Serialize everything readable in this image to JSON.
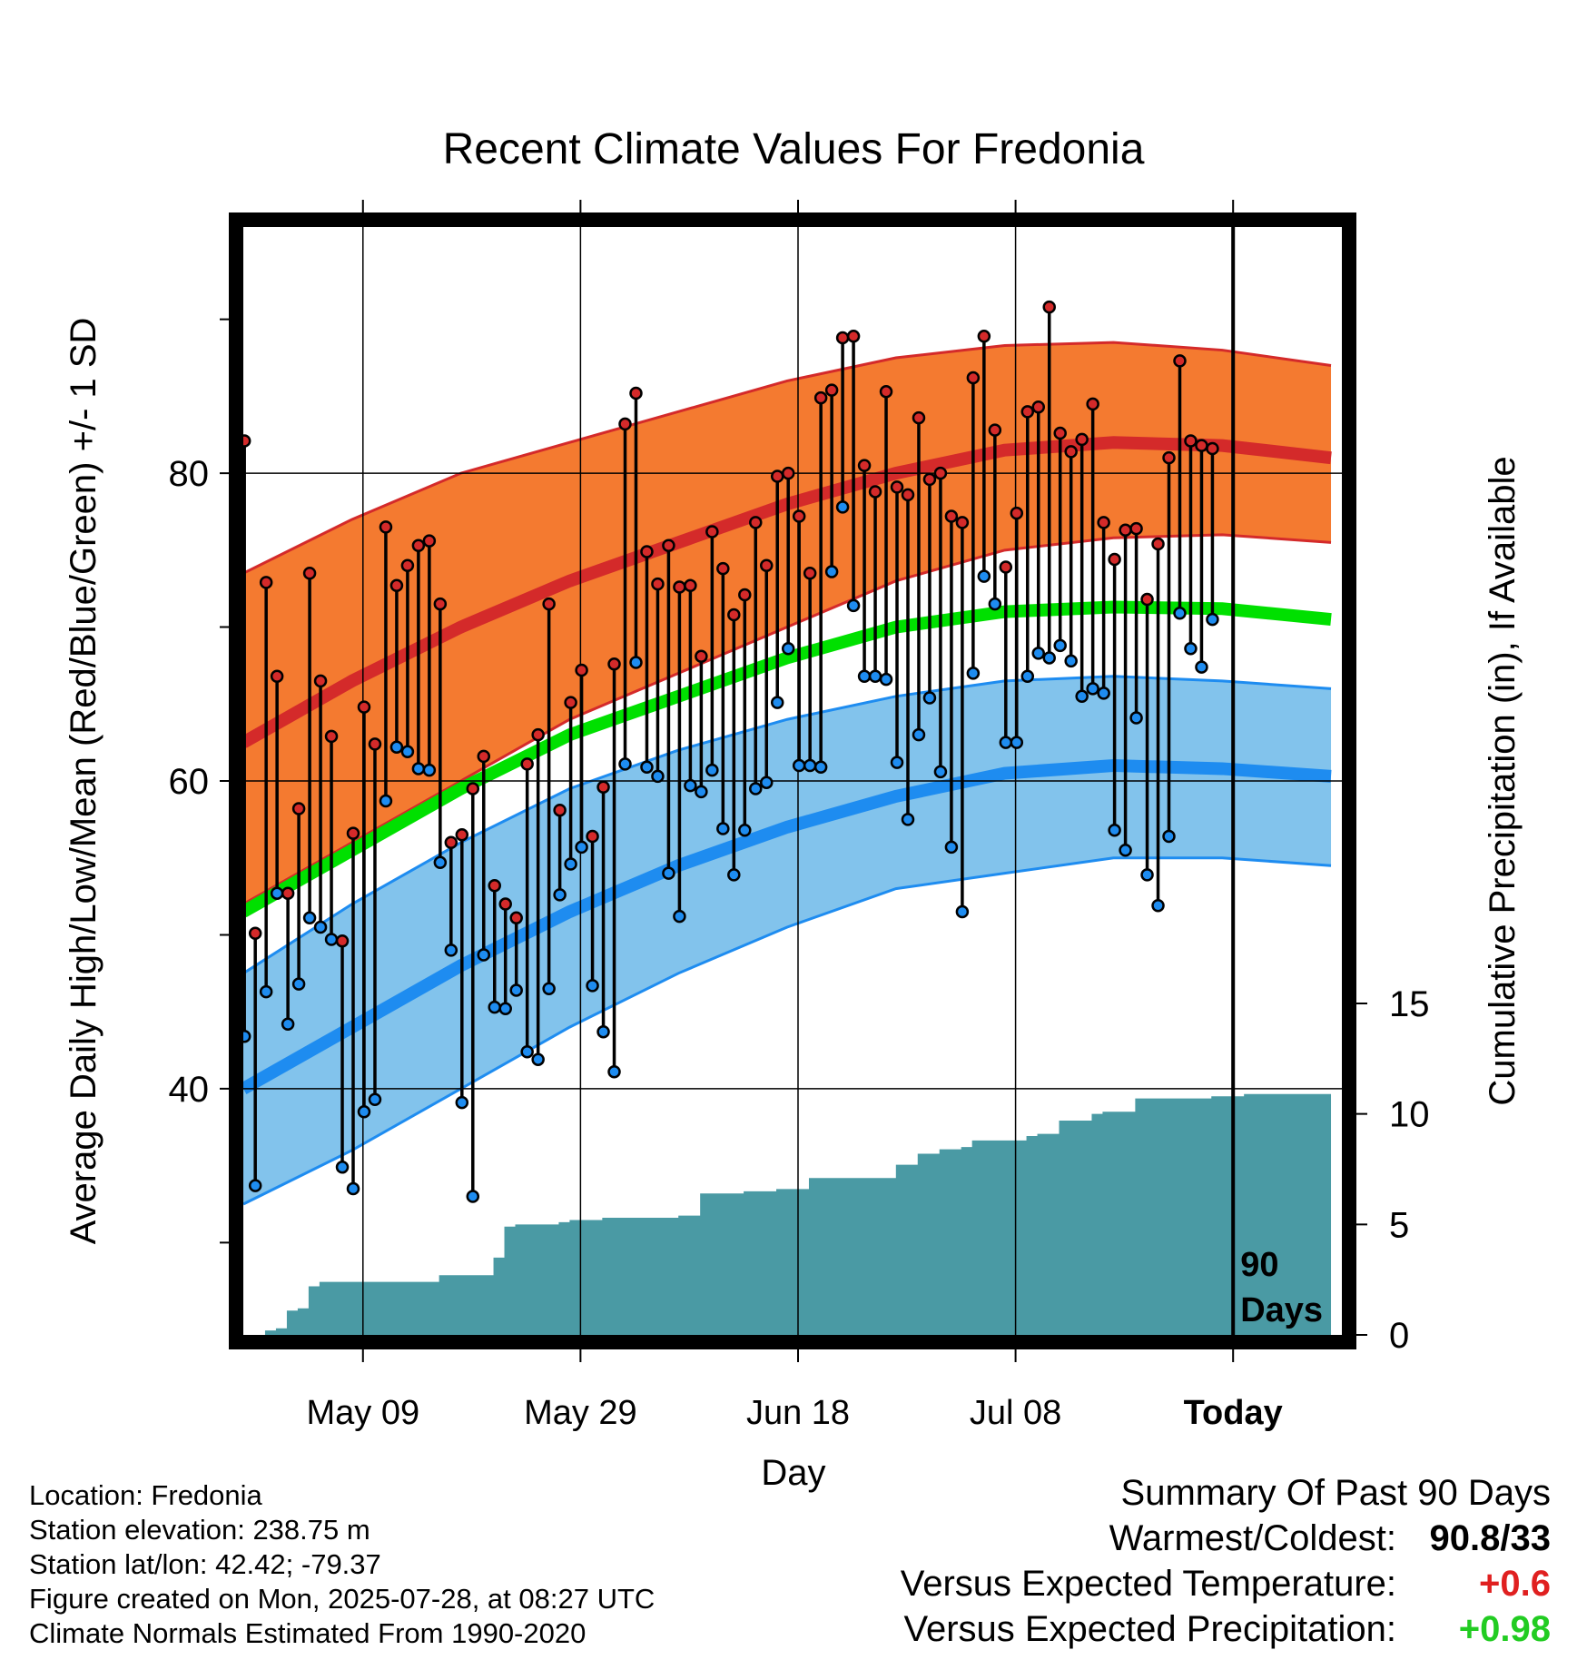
{
  "chart_data": {
    "type": "line",
    "title": "Recent Climate Values For Fredonia",
    "xlabel": "Day",
    "ylabel": "Average Daily High/Low/Mean (Red/Blue/Green) +/- 1 SD",
    "y2label": "Cumulative Precipitation (in), If Available",
    "x_tick_labels": [
      "May 09",
      "May 29",
      "Jun 18",
      "Jul 08",
      "Today"
    ],
    "x_tick_days": [
      11,
      31,
      51,
      71,
      91
    ],
    "y_ticks": [
      40,
      60,
      80
    ],
    "ylim": [
      24,
      96
    ],
    "y2_ticks": [
      0,
      5,
      10,
      15
    ],
    "y2lim": [
      0,
      15
    ],
    "xlim": [
      0,
      101
    ],
    "today_marker": "90\nDays",
    "normals": {
      "days": [
        0,
        10,
        20,
        30,
        40,
        50,
        60,
        70,
        80,
        90,
        100
      ],
      "high_mean": [
        62.5,
        66.5,
        70,
        73,
        75.5,
        78,
        80,
        81.5,
        82,
        81.8,
        81
      ],
      "high_upper": [
        73.5,
        77,
        80,
        82,
        84,
        86,
        87.5,
        88.3,
        88.5,
        88,
        87
      ],
      "high_lower": [
        52,
        56,
        60,
        64,
        67,
        70,
        73,
        75,
        75.8,
        76,
        75.5
      ],
      "mean": [
        51.5,
        55.5,
        59.5,
        63,
        65.5,
        68,
        70,
        71,
        71.3,
        71.2,
        70.5
      ],
      "low_mean": [
        40,
        44,
        48,
        51.5,
        54.5,
        57,
        59,
        60.5,
        61,
        60.8,
        60.3
      ],
      "low_upper": [
        47.5,
        52,
        56,
        59.5,
        62,
        64,
        65.5,
        66.5,
        66.8,
        66.5,
        66
      ],
      "low_lower": [
        32.5,
        36,
        40,
        44,
        47.5,
        50.5,
        53,
        54,
        55,
        55,
        54.5
      ]
    },
    "series": [
      {
        "name": "High",
        "values": [
          82.1,
          50.1,
          72.9,
          66.8,
          52.7,
          58.2,
          73.5,
          66.5,
          62.9,
          49.6,
          56.6,
          64.8,
          62.4,
          76.5,
          72.7,
          74.0,
          75.3,
          75.6,
          71.5,
          56.0,
          56.5,
          59.5,
          61.6,
          53.2,
          52.0,
          51.1,
          61.1,
          63.0,
          71.5,
          58.1,
          65.1,
          67.2,
          56.4,
          59.6,
          67.6,
          83.2,
          85.2,
          74.9,
          72.8,
          75.3,
          72.6,
          72.7,
          68.1,
          76.2,
          73.8,
          70.8,
          72.1,
          76.8,
          74.0,
          79.8,
          80.0,
          77.2,
          73.5,
          84.9,
          85.4,
          88.8,
          88.9,
          80.5,
          78.8,
          85.3,
          79.1,
          78.6,
          83.6,
          79.6,
          80.0,
          77.2,
          76.8,
          86.2,
          88.9,
          82.8,
          73.9,
          77.4,
          84.0,
          84.3,
          90.8,
          82.6,
          81.4,
          82.2,
          84.5,
          76.8,
          74.4,
          76.3,
          76.4,
          71.8,
          75.4,
          81.0,
          87.3,
          82.1,
          81.8,
          81.6
        ]
      },
      {
        "name": "Low",
        "values": [
          43.4,
          33.7,
          46.3,
          52.7,
          44.2,
          46.8,
          51.1,
          50.5,
          49.7,
          34.9,
          33.5,
          38.5,
          39.3,
          58.7,
          62.2,
          61.9,
          60.8,
          60.7,
          54.7,
          49.0,
          39.1,
          33.0,
          48.7,
          45.3,
          45.2,
          46.4,
          42.4,
          41.9,
          46.5,
          52.6,
          54.6,
          55.7,
          46.7,
          43.7,
          41.1,
          61.1,
          67.7,
          60.9,
          60.3,
          54.0,
          51.2,
          59.7,
          59.3,
          60.7,
          56.9,
          53.9,
          56.8,
          59.5,
          59.9,
          65.1,
          68.6,
          61.0,
          61.0,
          60.9,
          73.6,
          77.8,
          71.4,
          66.8,
          66.8,
          66.6,
          61.2,
          57.5,
          63.0,
          65.4,
          60.6,
          55.7,
          51.5,
          67.0,
          73.3,
          71.5,
          62.5,
          62.5,
          66.8,
          68.3,
          68.0,
          68.8,
          67.8,
          65.5,
          66.0,
          65.7,
          56.8,
          55.5,
          64.1,
          53.9,
          51.9,
          56.4,
          70.9,
          68.6,
          67.4,
          70.5
        ]
      }
    ],
    "precip_days": [
      0,
      1,
      2,
      3,
      4,
      5,
      6,
      7,
      8,
      9,
      10,
      11,
      12,
      13,
      14,
      15,
      16,
      17,
      18,
      19,
      20,
      21,
      22,
      23,
      24,
      25,
      26,
      27,
      28,
      29,
      30,
      31,
      32,
      33,
      34,
      35,
      36,
      37,
      38,
      39,
      40,
      41,
      42,
      43,
      44,
      45,
      46,
      47,
      48,
      49,
      50,
      51,
      52,
      53,
      54,
      55,
      56,
      57,
      58,
      59,
      60,
      61,
      62,
      63,
      64,
      65,
      66,
      67,
      68,
      69,
      70,
      71,
      72,
      73,
      74,
      75,
      76,
      77,
      78,
      79,
      80,
      81,
      82,
      83,
      84,
      85,
      86,
      87,
      88,
      89,
      90,
      91,
      92,
      93,
      94,
      95,
      96,
      97,
      98,
      99,
      100
    ],
    "cumulative_precip": [
      0,
      0,
      0.2,
      0.3,
      1.1,
      1.2,
      2.2,
      2.4,
      2.4,
      2.4,
      2.4,
      2.4,
      2.4,
      2.4,
      2.4,
      2.4,
      2.4,
      2.4,
      2.7,
      2.7,
      2.7,
      2.7,
      2.7,
      3.5,
      4.9,
      5.0,
      5.0,
      5.0,
      5.0,
      5.1,
      5.2,
      5.2,
      5.2,
      5.3,
      5.3,
      5.3,
      5.3,
      5.3,
      5.3,
      5.3,
      5.4,
      5.4,
      6.4,
      6.4,
      6.4,
      6.4,
      6.5,
      6.5,
      6.5,
      6.6,
      6.6,
      6.6,
      7.1,
      7.1,
      7.1,
      7.1,
      7.1,
      7.1,
      7.1,
      7.1,
      7.7,
      7.7,
      8.2,
      8.2,
      8.4,
      8.4,
      8.5,
      8.8,
      8.8,
      8.8,
      8.8,
      8.8,
      9.0,
      9.1,
      9.1,
      9.7,
      9.7,
      9.7,
      10.0,
      10.1,
      10.1,
      10.1,
      10.7,
      10.7,
      10.7,
      10.7,
      10.7,
      10.7,
      10.7,
      10.8,
      10.8,
      10.8,
      10.9,
      10.9,
      10.9,
      10.9,
      10.9,
      10.9,
      10.9,
      10.9,
      10.9
    ]
  },
  "footer": {
    "location": "Location: Fredonia",
    "elevation": "Station elevation: 238.75 m",
    "latlon": "Station lat/lon: 42.42; -79.37",
    "created": "Figure created on Mon, 2025-07-28, at 08:27 UTC",
    "normals": "Climate Normals Estimated From 1990-2020"
  },
  "summary": {
    "heading": "Summary Of Past 90 Days",
    "warm_cold_label": "Warmest/Coldest:",
    "warm_cold_value": "90.8/33",
    "temp_label": "Versus Expected Temperature:",
    "temp_value": "+0.6",
    "precip_label": "Versus Expected Precipitation:",
    "precip_value": "+0.98",
    "colors": {
      "temp": "#e02020",
      "precip": "#22cc22"
    }
  },
  "colors": {
    "high_band": "#f47a30",
    "high_line": "#d42a2a",
    "mean_line": "#00e000",
    "low_band": "#82c3ec",
    "low_line": "#1e8cf0",
    "precip": "#4a9aa4",
    "high_dot": "#d42a2a",
    "low_dot": "#1e8cf0"
  }
}
